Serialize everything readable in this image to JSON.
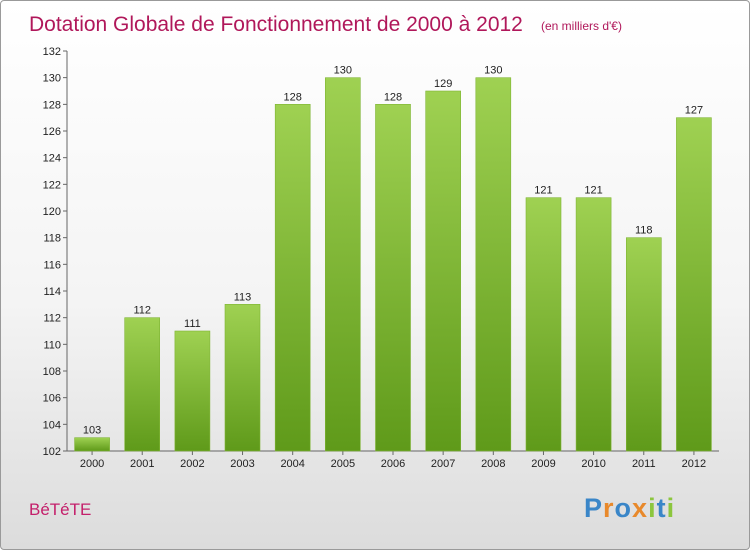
{
  "chart_data": {
    "type": "bar",
    "title": "Dotation Globale de Fonctionnement de 2000 à 2012",
    "subtitle": "(en milliers d'€)",
    "categories": [
      "2000",
      "2001",
      "2002",
      "2003",
      "2004",
      "2005",
      "2006",
      "2007",
      "2008",
      "2009",
      "2010",
      "2011",
      "2012"
    ],
    "values": [
      103,
      112,
      111,
      113,
      128,
      130,
      128,
      129,
      130,
      121,
      121,
      118,
      127
    ],
    "ylim": [
      102,
      132
    ],
    "yticks": [
      102,
      104,
      106,
      108,
      110,
      112,
      114,
      116,
      118,
      120,
      122,
      124,
      126,
      128,
      130,
      132
    ],
    "grid": false,
    "bar_color": "#8cc63e",
    "bar_color_dark": "#5f9a1a"
  },
  "footer": {
    "commune": "BéTéTE",
    "brand_letters": [
      "P",
      "r",
      "o",
      "x",
      "i",
      "t",
      "i"
    ],
    "brand_colors": [
      "#3a86c8",
      "#e8892b",
      "#3a86c8",
      "#e8892b",
      "#8cc63e",
      "#3a86c8",
      "#8cc63e"
    ]
  },
  "colors": {
    "title": "#b0175a",
    "commune": "#c4206b"
  }
}
